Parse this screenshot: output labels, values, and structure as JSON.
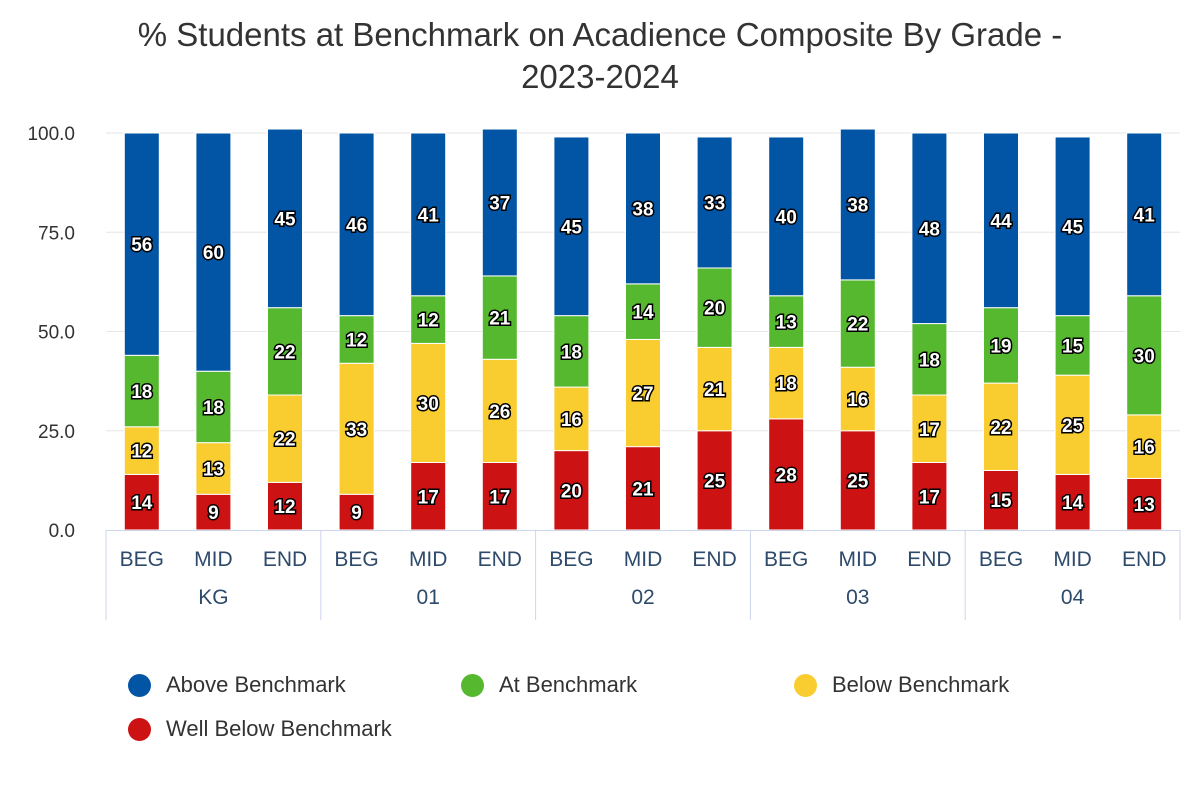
{
  "chart_data": {
    "type": "bar",
    "stacked": true,
    "title": "% Students at Benchmark on Acadience Composite By Grade -",
    "subtitle": "2023-2024",
    "ylim": [
      0,
      100
    ],
    "yticks": [
      "0.0",
      "25.0",
      "50.0",
      "75.0",
      "100.0"
    ],
    "groups": [
      "KG",
      "01",
      "02",
      "03",
      "04"
    ],
    "periods": [
      "BEG",
      "MID",
      "END"
    ],
    "categories": [
      "BEG",
      "MID",
      "END",
      "BEG",
      "MID",
      "END",
      "BEG",
      "MID",
      "END",
      "BEG",
      "MID",
      "END",
      "BEG",
      "MID",
      "END"
    ],
    "series": [
      {
        "name": "Well Below Benchmark",
        "color": "#cc1212",
        "values": [
          14,
          9,
          12,
          9,
          17,
          17,
          20,
          21,
          25,
          28,
          25,
          17,
          15,
          14,
          13
        ]
      },
      {
        "name": "Below Benchmark",
        "color": "#f9cc30",
        "values": [
          12,
          13,
          22,
          33,
          30,
          26,
          16,
          27,
          21,
          18,
          16,
          17,
          22,
          25,
          16
        ]
      },
      {
        "name": "At Benchmark",
        "color": "#55b82e",
        "values": [
          18,
          18,
          22,
          12,
          12,
          21,
          18,
          14,
          20,
          13,
          22,
          18,
          19,
          15,
          30
        ]
      },
      {
        "name": "Above Benchmark",
        "color": "#0255a4",
        "values": [
          56,
          60,
          45,
          46,
          41,
          37,
          45,
          38,
          33,
          40,
          38,
          48,
          44,
          45,
          41
        ]
      }
    ]
  },
  "legend": {
    "items": [
      {
        "label": "Above Benchmark",
        "color": "#0255a4"
      },
      {
        "label": "At Benchmark",
        "color": "#55b82e"
      },
      {
        "label": "Below Benchmark",
        "color": "#f9cc30"
      },
      {
        "label": "Well Below Benchmark",
        "color": "#cc1212"
      }
    ]
  }
}
